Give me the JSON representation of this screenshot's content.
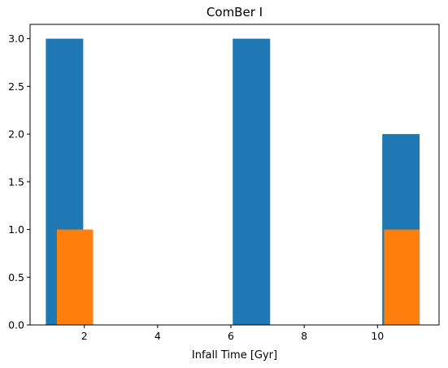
{
  "chart_data": {
    "type": "bar",
    "title": "ComBer I",
    "xlabel": "Infall Time [Gyr]",
    "ylabel": "",
    "xlim": [
      0.52,
      11.68
    ],
    "ylim": [
      0,
      3.15
    ],
    "xticks": [
      2,
      4,
      6,
      8,
      10
    ],
    "yticks": [
      0.0,
      0.5,
      1.0,
      1.5,
      2.0,
      2.5,
      3.0
    ],
    "grid": false,
    "series": [
      {
        "color": "#1f77b4",
        "bins": [
          {
            "x0": 0.95,
            "x1": 1.97,
            "value": 3
          },
          {
            "x0": 6.05,
            "x1": 7.07,
            "value": 3
          },
          {
            "x0": 10.13,
            "x1": 11.15,
            "value": 2
          }
        ]
      },
      {
        "color": "#ff7f0e",
        "bins": [
          {
            "x0": 1.25,
            "x1": 2.24,
            "value": 1
          },
          {
            "x0": 10.18,
            "x1": 11.15,
            "value": 1
          }
        ]
      }
    ]
  }
}
